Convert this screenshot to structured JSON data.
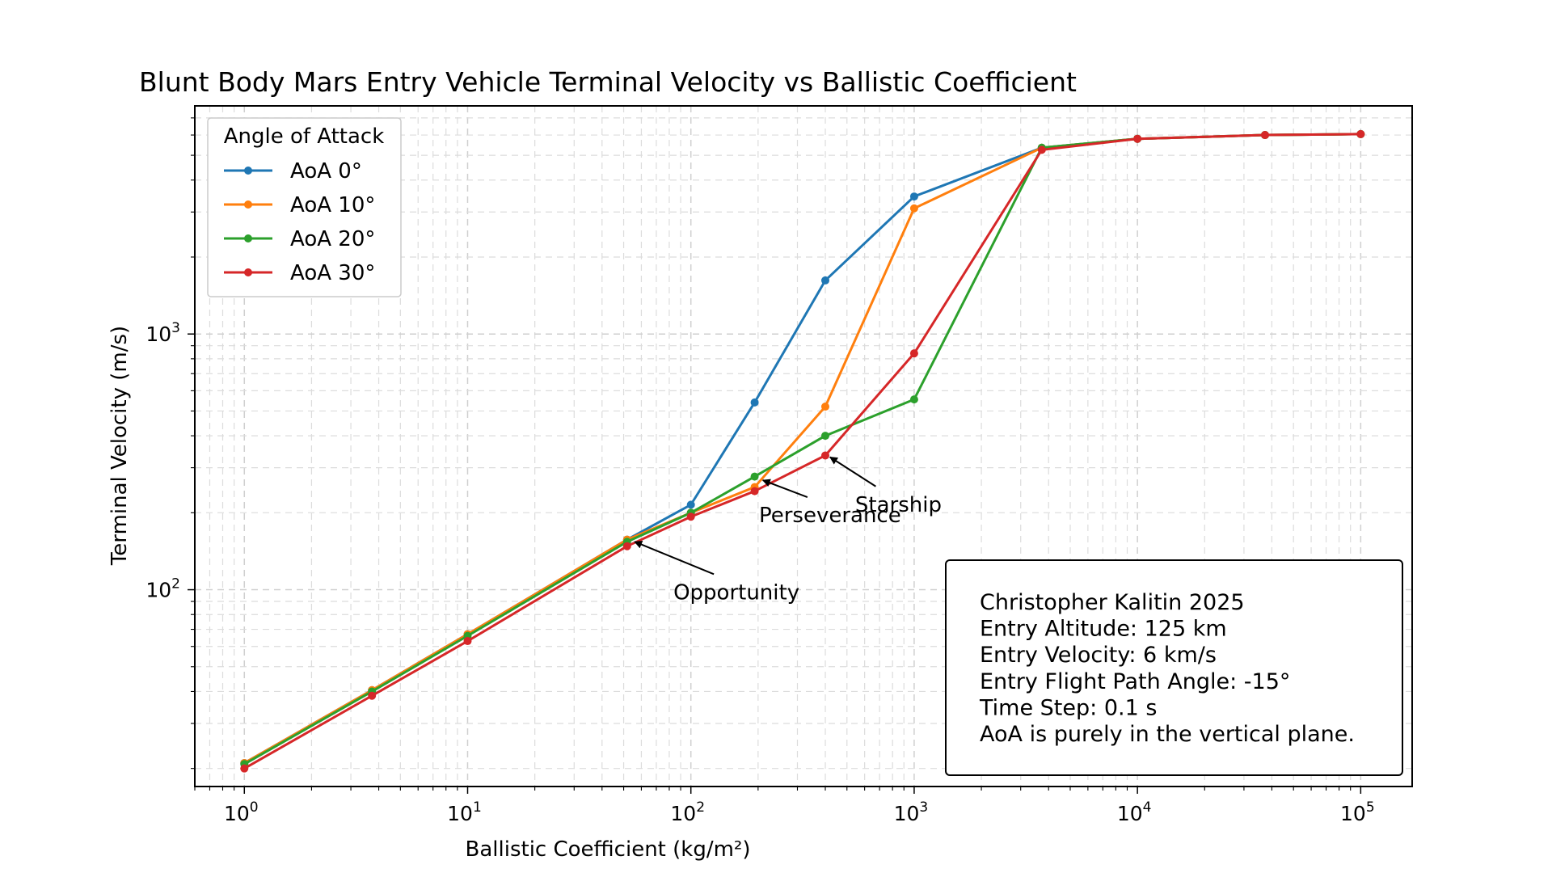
{
  "chart_data": {
    "type": "line",
    "title": "Blunt Body Mars Entry Vehicle Terminal Velocity vs Ballistic Coefficient",
    "xlabel": "Ballistic Coefficient (kg/m²)",
    "ylabel": "Terminal Velocity (m/s)",
    "xscale": "log",
    "yscale": "log",
    "xlim": [
      0.6,
      170000
    ],
    "ylim": [
      17,
      7800
    ],
    "grid": true,
    "legend": {
      "title": "Angle of Attack",
      "placement": "upper-left"
    },
    "x_ticks": [
      {
        "base": "10",
        "exp": "0",
        "value": 1
      },
      {
        "base": "10",
        "exp": "1",
        "value": 10
      },
      {
        "base": "10",
        "exp": "2",
        "value": 100
      },
      {
        "base": "10",
        "exp": "3",
        "value": 1000
      },
      {
        "base": "10",
        "exp": "4",
        "value": 10000
      },
      {
        "base": "10",
        "exp": "5",
        "value": 100000
      }
    ],
    "y_ticks": [
      {
        "base": "10",
        "exp": "2",
        "value": 100
      },
      {
        "base": "10",
        "exp": "3",
        "value": 1000
      }
    ],
    "series": [
      {
        "name": "AoA 0°",
        "color": "#1f77b4",
        "points": [
          [
            1,
            21
          ],
          [
            3.73,
            40.5
          ],
          [
            10,
            67
          ],
          [
            51.8,
            157
          ],
          [
            100,
            215
          ],
          [
            193,
            540
          ],
          [
            400,
            1620
          ],
          [
            1000,
            3450
          ],
          [
            3728,
            5350
          ],
          [
            10000,
            5800
          ],
          [
            37275,
            6000
          ],
          [
            100000,
            6050
          ]
        ]
      },
      {
        "name": "AoA 10°",
        "color": "#ff7f0e",
        "points": [
          [
            1,
            21
          ],
          [
            3.73,
            40.5
          ],
          [
            10,
            67
          ],
          [
            51.8,
            157
          ],
          [
            100,
            200
          ],
          [
            193,
            252
          ],
          [
            400,
            520
          ],
          [
            1000,
            3100
          ],
          [
            3728,
            5350
          ],
          [
            10000,
            5800
          ],
          [
            37275,
            6000
          ],
          [
            100000,
            6050
          ]
        ]
      },
      {
        "name": "AoA 20°",
        "color": "#2ca02c",
        "points": [
          [
            1,
            20.8
          ],
          [
            3.73,
            40
          ],
          [
            10,
            66
          ],
          [
            51.8,
            154
          ],
          [
            100,
            200
          ],
          [
            193,
            277
          ],
          [
            400,
            400
          ],
          [
            1000,
            555
          ],
          [
            3728,
            5350
          ],
          [
            10000,
            5800
          ],
          [
            37275,
            6000
          ],
          [
            100000,
            6050
          ]
        ]
      },
      {
        "name": "AoA 30°",
        "color": "#d62728",
        "points": [
          [
            1,
            20
          ],
          [
            3.73,
            38.5
          ],
          [
            10,
            63
          ],
          [
            51.8,
            148
          ],
          [
            100,
            193
          ],
          [
            193,
            243
          ],
          [
            400,
            335
          ],
          [
            1000,
            840
          ],
          [
            3728,
            5250
          ],
          [
            10000,
            5800
          ],
          [
            37275,
            6000
          ],
          [
            100000,
            6050
          ]
        ]
      }
    ],
    "annotations": [
      {
        "text": "Opportunity",
        "point": [
          56,
          154
        ],
        "text_at": [
          160,
          98
        ]
      },
      {
        "text": "Perseverance",
        "point": [
          210,
          268
        ],
        "text_at": [
          420,
          196
        ]
      },
      {
        "text": "Starship",
        "point": [
          420,
          330
        ],
        "text_at": [
          850,
          216
        ]
      }
    ],
    "info_box": {
      "lines": [
        "Christopher Kalitin 2025",
        "Entry Altitude: 125 km",
        "Entry Velocity: 6 km/s",
        "Entry Flight Path Angle: -15°",
        "Time Step: 0.1 s",
        "AoA is purely in the vertical plane."
      ]
    }
  }
}
